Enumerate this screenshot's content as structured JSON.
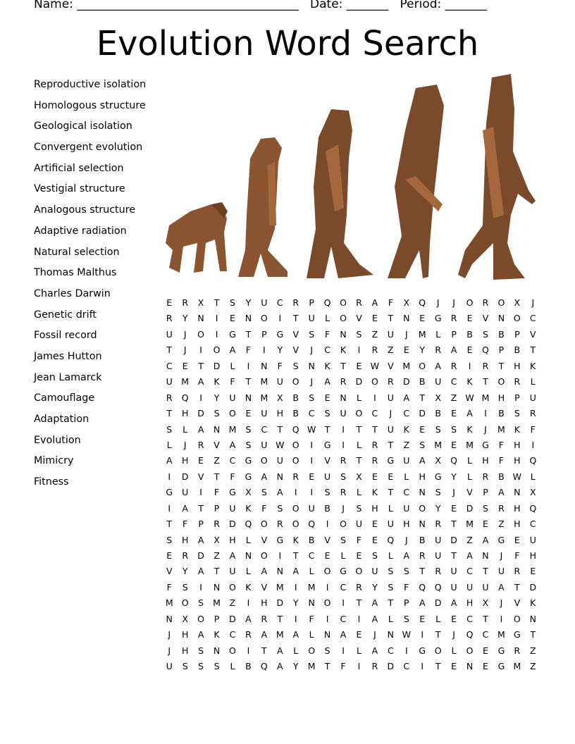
{
  "header": {
    "name_label": "Name:",
    "name_blank": "_____________________________________",
    "date_label": "Date:",
    "date_blank": "_______",
    "period_label": "Period:",
    "period_blank": "_______"
  },
  "title": "Evolution Word Search",
  "words": [
    "Reproductive isolation",
    "Homologous structure",
    "Geological isolation",
    "Convergent evolution",
    "Artificial selection",
    "Vestigial structure",
    "Analogous structure",
    "Adaptive radiation",
    "Natural selection",
    "Thomas Malthus",
    "Charles Darwin",
    "Genetic drift",
    "Fossil record",
    "James Hutton",
    "Jean Lamarck",
    "Camouflage",
    "Adaptation",
    "Evolution",
    "Mimicry",
    "Fitness"
  ],
  "grid": [
    "ERXTSYUCRPQORAFXQJJOROXJ",
    "RYNIENOITULOVETNEGREVNOC",
    "UJOIGTPGVSFNSZUJMLPBSBPV",
    "TJIOAFIYVJCKIRZEYRAEQPBT",
    "CETDLINFSNKTEWVMOARIRTHK",
    "UMAKFTMUOJARDORDBUCKTORL",
    "RQIYUNMXBSENLIUATXZWMHPU",
    "THDSOEUHBCSUOCJCDBEAIBSR",
    "SLANMSCTQWTITTUKESSKJMKF",
    "LJRVASUWOIGILRTZSMEMGFHI",
    "AHEZCGOUOIVRTRGUAXQLHFHQ",
    "IDVTFGANREUSXEELHGYLRBWL",
    "GUIFGXSAIISRLKTCNSJVPANX",
    "IATPUKFSOUBJSHLUOYEDSRHQ",
    "TFPRDQOROQIOUEUHNRTMEZHC",
    "SHAXHLVGKBVSFEQJBUDZAGEU",
    "ERDZANOITCELESLARUTANJFH",
    "VYATULANALOGOUSSTRUCTURE",
    "FSINOKVMIMICRYSFQQUUUATD",
    "MOSMZIHDYNOITATPADAHXJVK",
    "NXOPDARTIFICIALSELECTION",
    "JHAKCRAMALNAEJNWITJQCMGT",
    "JHSNOITALOSILACIGOLOEGRZ",
    "USSSLBQAYMTFIRDCITENEGMZ"
  ],
  "colors": {
    "figure_dark": "#7a4a2a",
    "figure_light": "#a5683d"
  }
}
